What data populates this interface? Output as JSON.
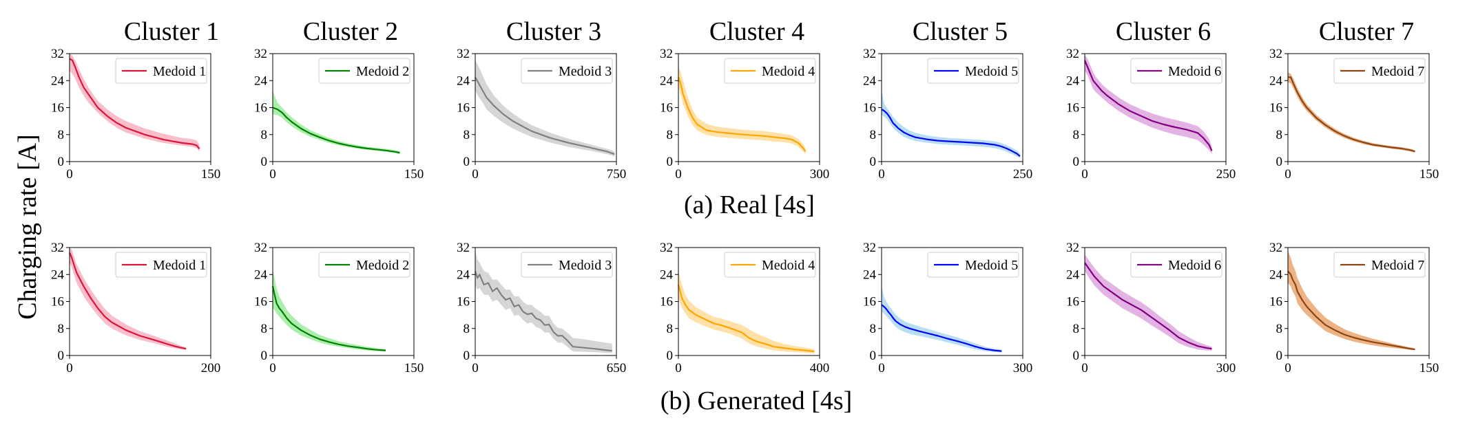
{
  "figure": {
    "ylabel": "Charging rate [A]",
    "column_titles": [
      "Cluster 1",
      "Cluster 2",
      "Cluster 3",
      "Cluster 4",
      "Cluster 5",
      "Cluster 6",
      "Cluster 7"
    ],
    "row_captions": [
      "(a) Real [4s]",
      "(b) Generated [4s]"
    ]
  },
  "colors": {
    "medoid": [
      "#dc143c",
      "#008000",
      "#808080",
      "#ffa500",
      "#0000ff",
      "#800080",
      "#8b4513"
    ],
    "band": [
      "#f7a8b8",
      "#90e890",
      "#c8c8c8",
      "#ffd68a",
      "#9fd3f2",
      "#d99ad9",
      "#e89a5c"
    ]
  },
  "chart_data": [
    {
      "type": "line",
      "row": "real",
      "cluster": 1,
      "legend": "Medoid 1",
      "ylim": [
        0,
        32
      ],
      "yticks": [
        0,
        8,
        16,
        24,
        32
      ],
      "xlim": [
        0,
        150
      ],
      "xticks": [
        0,
        150
      ],
      "x": [
        0,
        3,
        6,
        10,
        15,
        20,
        30,
        40,
        50,
        60,
        80,
        100,
        120,
        130,
        135,
        138
      ],
      "y": [
        30.5,
        30,
        28,
        25,
        22,
        20,
        16,
        13.5,
        11.5,
        10,
        8,
        6.5,
        5.5,
        5.2,
        4.8,
        3.8
      ],
      "band_upper": [
        32,
        31.5,
        30,
        27.5,
        24.5,
        22,
        18,
        15.5,
        13.5,
        12,
        9.8,
        8.2,
        7,
        6.7,
        6.2,
        5
      ],
      "band_lower": [
        27,
        26,
        24.5,
        22,
        19.5,
        17.5,
        14.5,
        12,
        10,
        8.6,
        6.8,
        5.5,
        4.7,
        4.4,
        4,
        3
      ]
    },
    {
      "type": "line",
      "row": "real",
      "cluster": 2,
      "legend": "Medoid 2",
      "ylim": [
        0,
        32
      ],
      "yticks": [
        0,
        8,
        16,
        24,
        32
      ],
      "xlim": [
        0,
        150
      ],
      "xticks": [
        0,
        150
      ],
      "x": [
        0,
        5,
        10,
        15,
        20,
        30,
        40,
        50,
        60,
        70,
        80,
        90,
        100,
        110,
        120,
        130,
        135
      ],
      "y": [
        16,
        15.5,
        14.5,
        13,
        11.8,
        9.8,
        8.3,
        7.2,
        6.2,
        5.4,
        4.8,
        4.3,
        3.9,
        3.6,
        3.3,
        2.9,
        2.6
      ],
      "band_upper": [
        21,
        17.5,
        16,
        14.5,
        13.2,
        11,
        9.3,
        8.1,
        7,
        6.1,
        5.4,
        4.9,
        4.4,
        4.1,
        3.8,
        3.4,
        3
      ],
      "band_lower": [
        14,
        13.8,
        13,
        11.6,
        10.5,
        8.7,
        7.4,
        6.4,
        5.5,
        4.8,
        4.3,
        3.8,
        3.5,
        3.2,
        2.9,
        2.5,
        2.2
      ]
    },
    {
      "type": "line",
      "row": "real",
      "cluster": 3,
      "legend": "Medoid 3",
      "ylim": [
        0,
        32
      ],
      "yticks": [
        0,
        8,
        16,
        24,
        32
      ],
      "xlim": [
        0,
        750
      ],
      "xticks": [
        0,
        750
      ],
      "x": [
        0,
        20,
        40,
        60,
        100,
        150,
        200,
        250,
        300,
        400,
        500,
        600,
        650,
        700,
        740
      ],
      "y": [
        25,
        23,
        21,
        19,
        16.5,
        14,
        12,
        10.5,
        9,
        7,
        5.5,
        4.3,
        3.6,
        3,
        2.2
      ],
      "band_upper": [
        30,
        28,
        25.5,
        23,
        19.5,
        16.5,
        14.2,
        12.4,
        10.8,
        8.5,
        6.7,
        5.3,
        4.5,
        3.8,
        3
      ],
      "band_lower": [
        21,
        19,
        17.5,
        15.5,
        13.5,
        11.5,
        9.8,
        8.5,
        7.3,
        5.6,
        4.3,
        3.3,
        2.8,
        2.2,
        1.5
      ]
    },
    {
      "type": "line",
      "row": "real",
      "cluster": 4,
      "legend": "Medoid 4",
      "ylim": [
        0,
        32
      ],
      "yticks": [
        0,
        8,
        16,
        24,
        32
      ],
      "xlim": [
        0,
        300
      ],
      "xticks": [
        0,
        300
      ],
      "x": [
        0,
        5,
        10,
        20,
        30,
        40,
        60,
        80,
        100,
        140,
        180,
        200,
        220,
        240,
        255,
        265,
        270
      ],
      "y": [
        25,
        23,
        20,
        16,
        13,
        11,
        9.3,
        8.8,
        8.5,
        8,
        7.6,
        7.3,
        7,
        6.6,
        5.5,
        4,
        3
      ],
      "band_upper": [
        28,
        26.5,
        24,
        19,
        15.5,
        13,
        11.2,
        10.4,
        10,
        9.4,
        9,
        8.7,
        8.3,
        7.8,
        6.7,
        5.2,
        4
      ],
      "band_lower": [
        22,
        20,
        17,
        13.5,
        10.8,
        9.2,
        7.9,
        7.4,
        7.1,
        6.7,
        6.3,
        6,
        5.8,
        5.4,
        4.4,
        3,
        2.2
      ]
    },
    {
      "type": "line",
      "row": "real",
      "cluster": 5,
      "legend": "Medoid 5",
      "ylim": [
        0,
        32
      ],
      "yticks": [
        0,
        8,
        16,
        24,
        32
      ],
      "xlim": [
        0,
        250
      ],
      "xticks": [
        0,
        250
      ],
      "x": [
        0,
        5,
        10,
        15,
        20,
        30,
        40,
        50,
        60,
        80,
        100,
        120,
        140,
        160,
        180,
        200,
        210,
        220,
        230,
        240,
        245
      ],
      "y": [
        15.5,
        15,
        14.2,
        13,
        11.5,
        9.8,
        8.6,
        7.8,
        7.2,
        6.6,
        6.2,
        6,
        5.8,
        5.6,
        5.4,
        5,
        4.6,
        4,
        3.2,
        2.3,
        1.6
      ],
      "band_upper": [
        21,
        17,
        15.8,
        14.5,
        13.3,
        11.5,
        10.2,
        9.2,
        8.5,
        7.8,
        7.3,
        7,
        6.8,
        6.6,
        6.4,
        6,
        5.6,
        5,
        4.2,
        3.2,
        2.4
      ],
      "band_lower": [
        13.8,
        13.3,
        12.5,
        11.3,
        10,
        8.4,
        7.3,
        6.6,
        6.1,
        5.6,
        5.2,
        5,
        4.8,
        4.6,
        4.4,
        4,
        3.6,
        3,
        2.3,
        1.5,
        1
      ]
    },
    {
      "type": "line",
      "row": "real",
      "cluster": 6,
      "legend": "Medoid 6",
      "ylim": [
        0,
        32
      ],
      "yticks": [
        0,
        8,
        16,
        24,
        32
      ],
      "xlim": [
        0,
        250
      ],
      "xticks": [
        0,
        250
      ],
      "x": [
        0,
        5,
        10,
        15,
        20,
        30,
        40,
        60,
        80,
        100,
        120,
        140,
        160,
        180,
        200,
        210,
        220,
        225
      ],
      "y": [
        30,
        28,
        26,
        24,
        23,
        21,
        19.5,
        17,
        15,
        13.5,
        12,
        11,
        10.2,
        9.5,
        8.5,
        7,
        5,
        3.2
      ],
      "band_upper": [
        31.5,
        30.5,
        28.5,
        26.5,
        25,
        23,
        21.5,
        19,
        17,
        15.5,
        14.2,
        13.2,
        12.4,
        11.6,
        10.5,
        9,
        6.8,
        4.5
      ],
      "band_lower": [
        27,
        25.5,
        23.5,
        21.5,
        20.5,
        19,
        17.5,
        15,
        13,
        11.5,
        10,
        8.9,
        8,
        7.3,
        6.4,
        5,
        3.4,
        2.2
      ]
    },
    {
      "type": "line",
      "row": "real",
      "cluster": 7,
      "legend": "Medoid 7",
      "ylim": [
        0,
        32
      ],
      "yticks": [
        0,
        8,
        16,
        24,
        32
      ],
      "xlim": [
        0,
        150
      ],
      "xticks": [
        0,
        150
      ],
      "x": [
        0,
        3,
        6,
        10,
        15,
        20,
        30,
        40,
        50,
        60,
        70,
        80,
        90,
        100,
        110,
        120,
        130,
        135
      ],
      "y": [
        25,
        25,
        23,
        20.5,
        18,
        16,
        13,
        10.8,
        9,
        7.6,
        6.5,
        5.7,
        5,
        4.6,
        4.2,
        3.9,
        3.4,
        3
      ],
      "band_upper": [
        26.5,
        26,
        24.5,
        21.8,
        19.2,
        17,
        13.9,
        11.6,
        9.7,
        8.2,
        7.1,
        6.2,
        5.5,
        5,
        4.6,
        4.3,
        3.8,
        3.3
      ],
      "band_lower": [
        23.5,
        23.2,
        21.6,
        19.2,
        16.8,
        15,
        12.2,
        10,
        8.3,
        7,
        6,
        5.2,
        4.6,
        4.2,
        3.8,
        3.5,
        3,
        2.7
      ]
    },
    {
      "type": "line",
      "row": "generated",
      "cluster": 1,
      "legend": "Medoid 1",
      "ylim": [
        0,
        32
      ],
      "yticks": [
        0,
        8,
        16,
        24,
        32
      ],
      "xlim": [
        0,
        200
      ],
      "xticks": [
        0,
        200
      ],
      "x": [
        0,
        3,
        6,
        10,
        15,
        20,
        30,
        40,
        50,
        60,
        80,
        100,
        120,
        140,
        150,
        160,
        165
      ],
      "y": [
        30.5,
        29,
        27,
        24.5,
        22.5,
        20.5,
        17,
        14,
        11.5,
        9.8,
        7.5,
        5.8,
        4.6,
        3.3,
        2.7,
        2.2,
        2
      ],
      "band_upper": [
        32,
        31.5,
        29.5,
        27,
        25,
        23,
        19.5,
        16.5,
        13.8,
        11.8,
        9.2,
        7.2,
        5.8,
        4.3,
        3.5,
        2.7,
        2.4
      ],
      "band_lower": [
        27.5,
        26,
        24,
        21.5,
        19.5,
        17.5,
        14.5,
        11.8,
        9.5,
        8,
        6,
        4.6,
        3.6,
        2.5,
        2.1,
        1.8,
        1.7
      ]
    },
    {
      "type": "line",
      "row": "generated",
      "cluster": 2,
      "legend": "Medoid 2",
      "ylim": [
        0,
        32
      ],
      "yticks": [
        0,
        8,
        16,
        24,
        32
      ],
      "xlim": [
        0,
        150
      ],
      "xticks": [
        0,
        150
      ],
      "x": [
        0,
        2,
        4,
        7,
        10,
        15,
        20,
        30,
        40,
        50,
        60,
        70,
        80,
        90,
        100,
        110,
        120
      ],
      "y": [
        20.5,
        18,
        15.5,
        14,
        13,
        11,
        9.5,
        7.5,
        6,
        4.8,
        4,
        3.3,
        2.8,
        2.4,
        2,
        1.7,
        1.5
      ],
      "band_upper": [
        25.5,
        23,
        20,
        17.5,
        16,
        13.5,
        11.8,
        9.3,
        7.6,
        6.1,
        5.1,
        4.2,
        3.6,
        3.1,
        2.6,
        2.2,
        1.9
      ],
      "band_lower": [
        14,
        13.5,
        12.5,
        11.5,
        10.5,
        9,
        7.7,
        6,
        4.8,
        3.8,
        3.1,
        2.6,
        2.2,
        1.8,
        1.5,
        1.3,
        1.2
      ]
    },
    {
      "type": "line",
      "row": "generated",
      "cluster": 3,
      "legend": "Medoid 3",
      "ylim": [
        0,
        32
      ],
      "yticks": [
        0,
        8,
        16,
        24,
        32
      ],
      "xlim": [
        0,
        650
      ],
      "xticks": [
        0,
        650
      ],
      "x": [
        0,
        10,
        20,
        40,
        60,
        80,
        100,
        120,
        140,
        160,
        180,
        200,
        220,
        240,
        260,
        280,
        300,
        320,
        340,
        360,
        380,
        400,
        420,
        450,
        500,
        550,
        600,
        630
      ],
      "y": [
        25,
        23,
        24,
        21,
        21.5,
        19,
        20,
        18,
        16.5,
        17,
        14.5,
        15,
        13,
        12.2,
        12.5,
        11,
        10.5,
        9,
        9.2,
        7,
        5.8,
        5.9,
        4.7,
        2.6,
        2.3,
        2,
        1.6,
        1.4
      ],
      "band_upper": [
        31,
        28.5,
        27.5,
        25,
        24.5,
        22.5,
        22.5,
        21,
        19.5,
        19.5,
        17.5,
        17.5,
        16,
        15,
        15,
        13.8,
        13,
        11.8,
        11.8,
        9.5,
        8.2,
        8,
        7,
        5.2,
        4.8,
        4.3,
        3.8,
        3.5
      ],
      "band_lower": [
        21,
        19.5,
        20,
        18,
        18,
        16,
        16.5,
        15,
        13.5,
        14,
        11.8,
        12,
        10.5,
        9.5,
        9.8,
        8.4,
        8,
        6.8,
        6.8,
        5,
        3.8,
        3.8,
        2.8,
        1.2,
        1.1,
        1,
        0.8,
        0.7
      ]
    },
    {
      "type": "line",
      "row": "generated",
      "cluster": 4,
      "legend": "Medoid 4",
      "ylim": [
        0,
        32
      ],
      "yticks": [
        0,
        8,
        16,
        24,
        32
      ],
      "xlim": [
        0,
        400
      ],
      "xticks": [
        0,
        400
      ],
      "x": [
        0,
        5,
        10,
        20,
        30,
        50,
        80,
        100,
        120,
        150,
        180,
        200,
        220,
        250,
        270,
        300,
        330,
        360,
        385
      ],
      "y": [
        21,
        19,
        17,
        15,
        13.5,
        12,
        10.5,
        9.5,
        9,
        8,
        6.8,
        5.2,
        4.2,
        3.3,
        2.6,
        2.2,
        1.8,
        1.5,
        1.2
      ],
      "band_upper": [
        25,
        23,
        21,
        18,
        16.2,
        14.3,
        12.5,
        11.5,
        11,
        10,
        9,
        7.8,
        6.6,
        5.3,
        4.3,
        3.4,
        2.8,
        2.3,
        1.9
      ],
      "band_lower": [
        17,
        15.5,
        14,
        12.5,
        11,
        9.8,
        8.5,
        7.7,
        7.2,
        6.3,
        5,
        3.6,
        2.7,
        2,
        1.5,
        1.2,
        1,
        0.8,
        0.6
      ]
    },
    {
      "type": "line",
      "row": "generated",
      "cluster": 5,
      "legend": "Medoid 5",
      "ylim": [
        0,
        32
      ],
      "yticks": [
        0,
        8,
        16,
        24,
        32
      ],
      "xlim": [
        0,
        300
      ],
      "xticks": [
        0,
        300
      ],
      "x": [
        0,
        5,
        10,
        15,
        20,
        25,
        30,
        40,
        50,
        60,
        80,
        100,
        120,
        140,
        160,
        180,
        200,
        220,
        240,
        255
      ],
      "y": [
        15,
        14.5,
        13.8,
        12.8,
        12,
        11,
        10.2,
        9.2,
        8.5,
        8,
        7.2,
        6.5,
        5.8,
        5,
        4.3,
        3.5,
        2.6,
        1.9,
        1.5,
        1.3
      ],
      "band_upper": [
        20.5,
        17.5,
        16,
        14.8,
        14,
        13,
        12.1,
        10.9,
        10,
        9.5,
        8.6,
        7.8,
        7,
        6.2,
        5.4,
        4.5,
        3.5,
        2.6,
        2,
        1.7
      ],
      "band_lower": [
        13,
        12.5,
        11.8,
        10.9,
        10.1,
        9.2,
        8.4,
        7.5,
        6.9,
        6.4,
        5.8,
        5.2,
        4.6,
        3.9,
        3.2,
        2.5,
        1.8,
        1.3,
        1,
        0.9
      ]
    },
    {
      "type": "line",
      "row": "generated",
      "cluster": 6,
      "legend": "Medoid 6",
      "ylim": [
        0,
        32
      ],
      "yticks": [
        0,
        8,
        16,
        24,
        32
      ],
      "xlim": [
        0,
        300
      ],
      "xticks": [
        0,
        300
      ],
      "x": [
        0,
        5,
        10,
        15,
        20,
        30,
        40,
        60,
        80,
        100,
        120,
        140,
        160,
        180,
        200,
        220,
        240,
        260,
        270
      ],
      "y": [
        27.5,
        26.5,
        25.5,
        24.5,
        23.5,
        22,
        20.5,
        18.5,
        16.5,
        15,
        13.5,
        11.5,
        9.5,
        7.5,
        5.3,
        3.9,
        2.8,
        2.2,
        2
      ],
      "band_upper": [
        30,
        29,
        28,
        27,
        26,
        24.5,
        23,
        21,
        19,
        17.4,
        15.8,
        13.8,
        11.6,
        9.5,
        7.2,
        5.5,
        4,
        3,
        2.6
      ],
      "band_lower": [
        25,
        24,
        22.8,
        21.8,
        20.8,
        19.4,
        18,
        16,
        14,
        12.5,
        11,
        9.1,
        7.4,
        5.6,
        3.6,
        2.5,
        1.8,
        1.5,
        1.4
      ]
    },
    {
      "type": "line",
      "row": "generated",
      "cluster": 7,
      "legend": "Medoid 7",
      "ylim": [
        0,
        32
      ],
      "yticks": [
        0,
        8,
        16,
        24,
        32
      ],
      "xlim": [
        0,
        150
      ],
      "xticks": [
        0,
        150
      ],
      "x": [
        0,
        3,
        5,
        8,
        10,
        15,
        20,
        30,
        40,
        50,
        60,
        70,
        80,
        90,
        100,
        110,
        120,
        130,
        135
      ],
      "y": [
        25,
        24,
        22.5,
        21,
        19,
        16.5,
        14.5,
        11.5,
        9,
        7.5,
        6.2,
        5.3,
        4.6,
        4,
        3.5,
        3,
        2.5,
        2,
        1.8
      ],
      "band_upper": [
        31,
        29,
        27,
        25,
        23,
        20,
        17.5,
        14,
        11.2,
        9.4,
        7.8,
        6.7,
        5.8,
        5,
        4.3,
        3.6,
        3,
        2.4,
        2.1
      ],
      "band_lower": [
        21.5,
        20.5,
        19,
        17.5,
        15.5,
        13.5,
        12,
        9.5,
        7.2,
        6,
        4.9,
        4.1,
        3.5,
        3,
        2.6,
        2.3,
        2,
        1.7,
        1.6
      ]
    }
  ]
}
